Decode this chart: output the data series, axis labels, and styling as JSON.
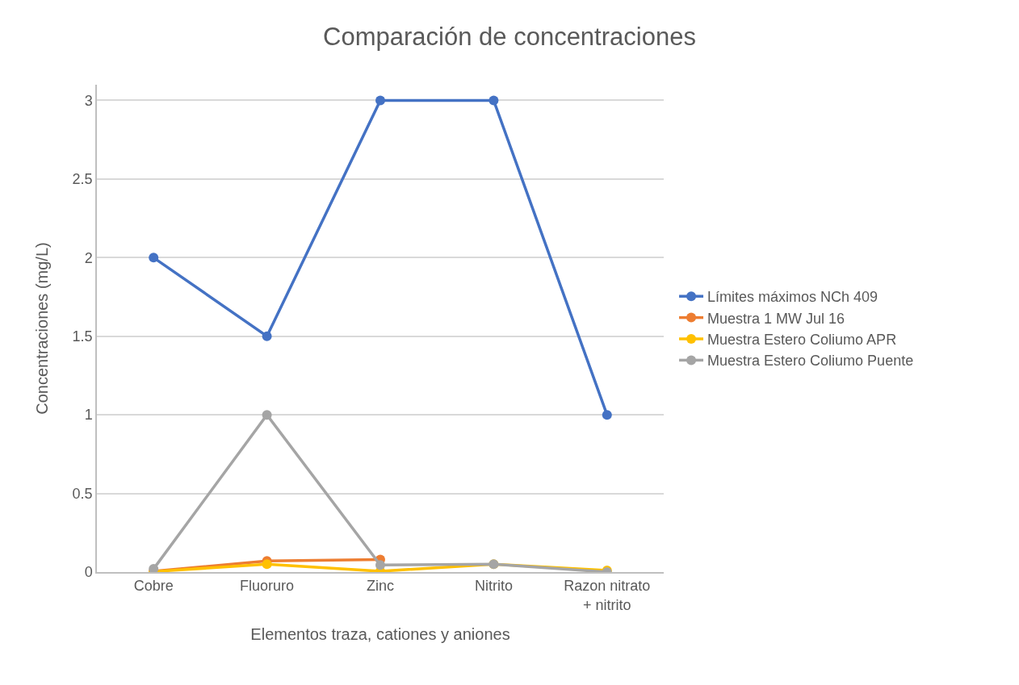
{
  "chart_data": {
    "type": "line",
    "title": "Comparación de concentraciones",
    "xlabel": "Elementos traza, cationes y aniones",
    "ylabel": "Concentraciones (mg/L)",
    "categories": [
      "Cobre",
      "Fluoruro",
      "Zinc",
      "Nitrito",
      "Razon nitrato + nitrito"
    ],
    "series": [
      {
        "name": "Límites máximos NCh 409",
        "color": "#4472c4",
        "values": [
          2,
          1.5,
          3,
          3,
          1
        ]
      },
      {
        "name": "Muestra 1 MW Jul 16",
        "color": "#ed7d31",
        "values": [
          0.005,
          0.07,
          0.08,
          null,
          null
        ]
      },
      {
        "name": "Muestra Estero Coliumo APR",
        "color": "#ffc000",
        "values": [
          0.003,
          0.05,
          0.005,
          0.05,
          0.01
        ]
      },
      {
        "name": "Muestra Estero Coliumo Puente",
        "color": "#a5a5a5",
        "values": [
          0.02,
          1,
          0.045,
          0.05,
          0
        ]
      }
    ],
    "ylim": [
      0,
      3.1
    ],
    "yticks": [
      0,
      0.5,
      1,
      1.5,
      2,
      2.5,
      3
    ],
    "grid": "y",
    "legend": "right",
    "marker": "circle",
    "line_style": "solid"
  }
}
